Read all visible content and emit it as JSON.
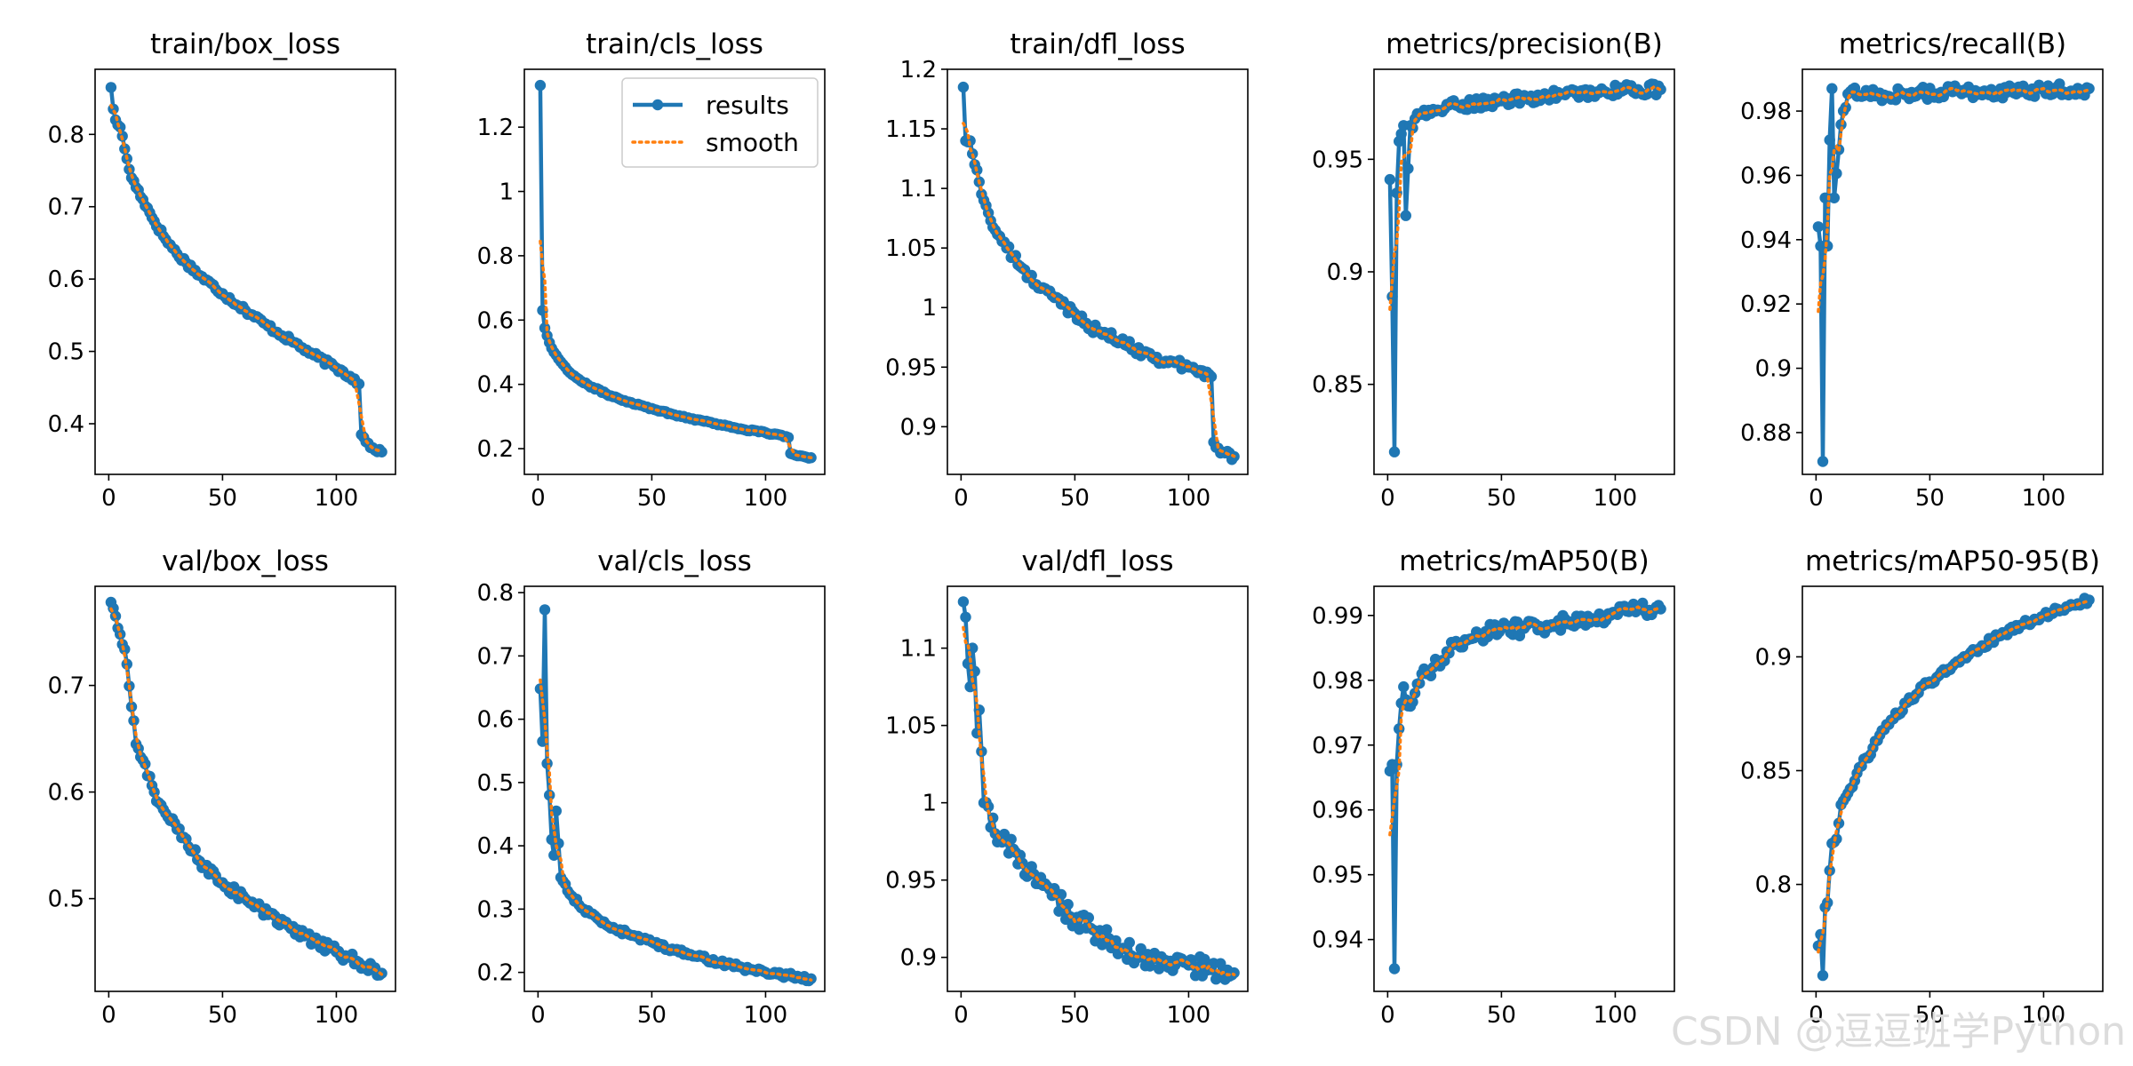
{
  "chart_data": [
    {
      "type": "line",
      "title": "train/box_loss",
      "xlabel": "",
      "ylabel": "",
      "xlim": [
        -6,
        126
      ],
      "ylim": [
        0.33,
        0.89
      ],
      "xticks": [
        0,
        50,
        100
      ],
      "yticks": [
        0.4,
        0.5,
        0.6,
        0.7,
        0.8
      ],
      "grid": false,
      "anchors": [
        [
          1,
          0.865
        ],
        [
          2,
          0.835
        ],
        [
          3,
          0.82
        ],
        [
          5,
          0.81
        ],
        [
          7,
          0.78
        ],
        [
          10,
          0.74
        ],
        [
          15,
          0.71
        ],
        [
          20,
          0.68
        ],
        [
          25,
          0.655
        ],
        [
          30,
          0.635
        ],
        [
          40,
          0.605
        ],
        [
          50,
          0.58
        ],
        [
          60,
          0.557
        ],
        [
          70,
          0.535
        ],
        [
          80,
          0.515
        ],
        [
          90,
          0.495
        ],
        [
          100,
          0.477
        ],
        [
          108,
          0.462
        ],
        [
          110,
          0.455
        ],
        [
          111,
          0.385
        ],
        [
          113,
          0.375
        ],
        [
          116,
          0.367
        ],
        [
          120,
          0.361
        ]
      ],
      "noise": 0.004,
      "series": [
        {
          "name": "results"
        },
        {
          "name": "smooth"
        }
      ]
    },
    {
      "type": "line",
      "title": "train/cls_loss",
      "xlabel": "",
      "ylabel": "",
      "xlim": [
        -6,
        126
      ],
      "ylim": [
        0.12,
        1.38
      ],
      "xticks": [
        0,
        50,
        100
      ],
      "yticks": [
        0.2,
        0.4,
        0.6,
        0.8,
        1.0,
        1.2
      ],
      "grid": false,
      "anchors": [
        [
          1,
          1.33
        ],
        [
          2,
          0.63
        ],
        [
          3,
          0.575
        ],
        [
          5,
          0.53
        ],
        [
          7,
          0.5
        ],
        [
          10,
          0.47
        ],
        [
          15,
          0.43
        ],
        [
          20,
          0.405
        ],
        [
          30,
          0.37
        ],
        [
          40,
          0.345
        ],
        [
          50,
          0.325
        ],
        [
          60,
          0.305
        ],
        [
          70,
          0.29
        ],
        [
          80,
          0.275
        ],
        [
          90,
          0.26
        ],
        [
          100,
          0.25
        ],
        [
          110,
          0.235
        ],
        [
          111,
          0.185
        ],
        [
          115,
          0.178
        ],
        [
          120,
          0.172
        ]
      ],
      "noise": 0.003,
      "series": [
        {
          "name": "results"
        },
        {
          "name": "smooth"
        }
      ],
      "legend": {
        "position": "upper right",
        "entries": [
          "results",
          "smooth"
        ]
      }
    },
    {
      "type": "line",
      "title": "train/dfl_loss",
      "xlabel": "",
      "ylabel": "",
      "xlim": [
        -6,
        126
      ],
      "ylim": [
        0.86,
        1.2
      ],
      "xticks": [
        0,
        50,
        100
      ],
      "yticks": [
        0.9,
        0.95,
        1.0,
        1.05,
        1.1,
        1.15,
        1.2
      ],
      "grid": false,
      "anchors": [
        [
          1,
          1.185
        ],
        [
          2,
          1.14
        ],
        [
          4,
          1.14
        ],
        [
          6,
          1.12
        ],
        [
          10,
          1.09
        ],
        [
          15,
          1.065
        ],
        [
          20,
          1.05
        ],
        [
          30,
          1.025
        ],
        [
          40,
          1.01
        ],
        [
          50,
          0.995
        ],
        [
          60,
          0.98
        ],
        [
          70,
          0.972
        ],
        [
          80,
          0.962
        ],
        [
          90,
          0.955
        ],
        [
          100,
          0.95
        ],
        [
          110,
          0.942
        ],
        [
          111,
          0.887
        ],
        [
          113,
          0.882
        ],
        [
          116,
          0.878
        ],
        [
          120,
          0.875
        ]
      ],
      "noise": 0.004,
      "series": [
        {
          "name": "results"
        },
        {
          "name": "smooth"
        }
      ]
    },
    {
      "type": "line",
      "title": "metrics/precision(B)",
      "xlabel": "",
      "ylabel": "",
      "xlim": [
        -6,
        126
      ],
      "ylim": [
        0.81,
        0.99
      ],
      "xticks": [
        0,
        50,
        100
      ],
      "yticks": [
        0.85,
        0.9,
        0.95
      ],
      "grid": false,
      "anchors": [
        [
          1,
          0.941
        ],
        [
          2,
          0.889
        ],
        [
          3,
          0.82
        ],
        [
          4,
          0.935
        ],
        [
          5,
          0.958
        ],
        [
          7,
          0.965
        ],
        [
          8,
          0.925
        ],
        [
          10,
          0.965
        ],
        [
          15,
          0.97
        ],
        [
          30,
          0.974
        ],
        [
          50,
          0.976
        ],
        [
          70,
          0.978
        ],
        [
          90,
          0.98
        ],
        [
          110,
          0.981
        ],
        [
          120,
          0.981
        ]
      ],
      "noise": 0.0025,
      "series": [
        {
          "name": "results"
        },
        {
          "name": "smooth"
        }
      ]
    },
    {
      "type": "line",
      "title": "metrics/recall(B)",
      "xlabel": "",
      "ylabel": "",
      "xlim": [
        -6,
        126
      ],
      "ylim": [
        0.867,
        0.993
      ],
      "xticks": [
        0,
        50,
        100
      ],
      "yticks": [
        0.88,
        0.9,
        0.92,
        0.94,
        0.96,
        0.98
      ],
      "grid": false,
      "anchors": [
        [
          1,
          0.944
        ],
        [
          2,
          0.938
        ],
        [
          3,
          0.871
        ],
        [
          4,
          0.953
        ],
        [
          5,
          0.938
        ],
        [
          6,
          0.971
        ],
        [
          7,
          0.987
        ],
        [
          8,
          0.953
        ],
        [
          10,
          0.968
        ],
        [
          12,
          0.98
        ],
        [
          15,
          0.986
        ],
        [
          30,
          0.985
        ],
        [
          60,
          0.986
        ],
        [
          90,
          0.986
        ],
        [
          120,
          0.987
        ]
      ],
      "noise": 0.002,
      "series": [
        {
          "name": "results"
        },
        {
          "name": "smooth"
        }
      ]
    },
    {
      "type": "line",
      "title": "val/box_loss",
      "xlabel": "",
      "ylabel": "",
      "xlim": [
        -6,
        126
      ],
      "ylim": [
        0.413,
        0.793
      ],
      "xticks": [
        0,
        50,
        100
      ],
      "yticks": [
        0.5,
        0.6,
        0.7
      ],
      "grid": false,
      "anchors": [
        [
          1,
          0.778
        ],
        [
          3,
          0.765
        ],
        [
          5,
          0.748
        ],
        [
          8,
          0.72
        ],
        [
          10,
          0.68
        ],
        [
          12,
          0.645
        ],
        [
          15,
          0.63
        ],
        [
          20,
          0.6
        ],
        [
          25,
          0.58
        ],
        [
          30,
          0.565
        ],
        [
          40,
          0.535
        ],
        [
          50,
          0.515
        ],
        [
          60,
          0.5
        ],
        [
          70,
          0.485
        ],
        [
          80,
          0.472
        ],
        [
          90,
          0.46
        ],
        [
          100,
          0.45
        ],
        [
          110,
          0.44
        ],
        [
          120,
          0.43
        ]
      ],
      "noise": 0.005,
      "series": [
        {
          "name": "results"
        },
        {
          "name": "smooth"
        }
      ]
    },
    {
      "type": "line",
      "title": "val/cls_loss",
      "xlabel": "",
      "ylabel": "",
      "xlim": [
        -6,
        126
      ],
      "ylim": [
        0.17,
        0.81
      ],
      "xticks": [
        0,
        50,
        100
      ],
      "yticks": [
        0.2,
        0.3,
        0.4,
        0.5,
        0.6,
        0.7,
        0.8
      ],
      "grid": false,
      "anchors": [
        [
          1,
          0.648
        ],
        [
          2,
          0.565
        ],
        [
          3,
          0.773
        ],
        [
          4,
          0.53
        ],
        [
          5,
          0.48
        ],
        [
          6,
          0.41
        ],
        [
          7,
          0.385
        ],
        [
          8,
          0.455
        ],
        [
          10,
          0.35
        ],
        [
          15,
          0.32
        ],
        [
          20,
          0.3
        ],
        [
          30,
          0.275
        ],
        [
          40,
          0.26
        ],
        [
          50,
          0.248
        ],
        [
          60,
          0.235
        ],
        [
          70,
          0.225
        ],
        [
          80,
          0.215
        ],
        [
          90,
          0.207
        ],
        [
          100,
          0.2
        ],
        [
          110,
          0.195
        ],
        [
          120,
          0.19
        ]
      ],
      "noise": 0.004,
      "series": [
        {
          "name": "results"
        },
        {
          "name": "smooth"
        }
      ]
    },
    {
      "type": "line",
      "title": "val/dfl_loss",
      "xlabel": "",
      "ylabel": "",
      "xlim": [
        -6,
        126
      ],
      "ylim": [
        0.878,
        1.14
      ],
      "xticks": [
        0,
        50,
        100
      ],
      "yticks": [
        0.9,
        0.95,
        1.0,
        1.05,
        1.1
      ],
      "grid": false,
      "anchors": [
        [
          1,
          1.13
        ],
        [
          2,
          1.12
        ],
        [
          3,
          1.09
        ],
        [
          4,
          1.075
        ],
        [
          5,
          1.1
        ],
        [
          6,
          1.085
        ],
        [
          7,
          1.045
        ],
        [
          8,
          1.06
        ],
        [
          10,
          1.0
        ],
        [
          15,
          0.98
        ],
        [
          20,
          0.975
        ],
        [
          30,
          0.955
        ],
        [
          40,
          0.94
        ],
        [
          50,
          0.925
        ],
        [
          60,
          0.915
        ],
        [
          70,
          0.905
        ],
        [
          80,
          0.9
        ],
        [
          90,
          0.898
        ],
        [
          100,
          0.895
        ],
        [
          110,
          0.892
        ],
        [
          120,
          0.89
        ]
      ],
      "noise": 0.007,
      "series": [
        {
          "name": "results"
        },
        {
          "name": "smooth"
        }
      ]
    },
    {
      "type": "line",
      "title": "metrics/mAP50(B)",
      "xlabel": "",
      "ylabel": "",
      "xlim": [
        -6,
        126
      ],
      "ylim": [
        0.932,
        0.9945
      ],
      "xticks": [
        0,
        50,
        100
      ],
      "yticks": [
        0.94,
        0.95,
        0.96,
        0.97,
        0.98,
        0.99
      ],
      "grid": false,
      "anchors": [
        [
          1,
          0.966
        ],
        [
          2,
          0.967
        ],
        [
          3,
          0.9355
        ],
        [
          4,
          0.967
        ],
        [
          5,
          0.9725
        ],
        [
          7,
          0.979
        ],
        [
          10,
          0.976
        ],
        [
          12,
          0.978
        ],
        [
          15,
          0.981
        ],
        [
          20,
          0.982
        ],
        [
          25,
          0.983
        ],
        [
          30,
          0.986
        ],
        [
          40,
          0.987
        ],
        [
          50,
          0.988
        ],
        [
          60,
          0.988
        ],
        [
          70,
          0.9885
        ],
        [
          80,
          0.989
        ],
        [
          90,
          0.9895
        ],
        [
          100,
          0.9905
        ],
        [
          110,
          0.991
        ],
        [
          120,
          0.991
        ]
      ],
      "noise": 0.0012,
      "series": [
        {
          "name": "results"
        },
        {
          "name": "smooth"
        }
      ]
    },
    {
      "type": "line",
      "title": "metrics/mAP50-95(B)",
      "xlabel": "",
      "ylabel": "",
      "xlim": [
        -6,
        126
      ],
      "ylim": [
        0.753,
        0.931
      ],
      "xticks": [
        0,
        50,
        100
      ],
      "yticks": [
        0.8,
        0.85,
        0.9
      ],
      "grid": false,
      "anchors": [
        [
          1,
          0.773
        ],
        [
          2,
          0.778
        ],
        [
          3,
          0.76
        ],
        [
          4,
          0.79
        ],
        [
          5,
          0.792
        ],
        [
          7,
          0.818
        ],
        [
          9,
          0.82
        ],
        [
          11,
          0.835
        ],
        [
          15,
          0.842
        ],
        [
          20,
          0.852
        ],
        [
          25,
          0.86
        ],
        [
          30,
          0.868
        ],
        [
          40,
          0.88
        ],
        [
          50,
          0.889
        ],
        [
          60,
          0.896
        ],
        [
          70,
          0.903
        ],
        [
          80,
          0.909
        ],
        [
          90,
          0.914
        ],
        [
          100,
          0.918
        ],
        [
          110,
          0.922
        ],
        [
          120,
          0.925
        ]
      ],
      "noise": 0.0015,
      "series": [
        {
          "name": "results"
        },
        {
          "name": "smooth"
        }
      ]
    }
  ],
  "legend_labels": [
    "results",
    "smooth"
  ],
  "colors": {
    "results": "#1f77b4",
    "smooth": "#ff7f0e",
    "axes": "#000000",
    "background": "#ffffff",
    "watermark": "#dcdcdc"
  },
  "watermark": "CSDN @逗逗班学Python"
}
